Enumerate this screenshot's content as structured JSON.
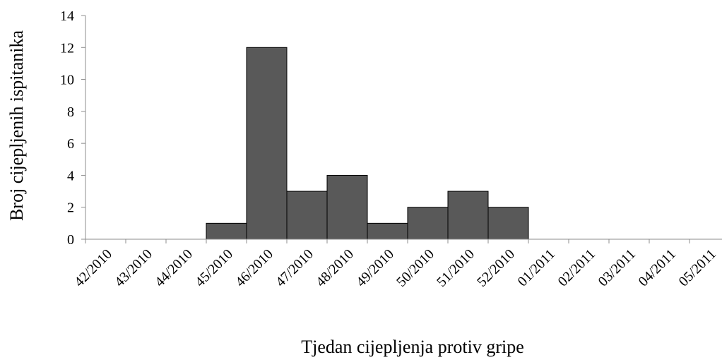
{
  "chart_data": {
    "type": "bar",
    "title": "",
    "xlabel": "Tjedan cijepljenja protiv gripe",
    "ylabel": "Broj cijepljenih ispitanika",
    "categories": [
      "42/2010",
      "43/2010",
      "44/2010",
      "45/2010",
      "46/2010",
      "47/2010",
      "48/2010",
      "49/2010",
      "50/2010",
      "51/2010",
      "52/2010",
      "01/2011",
      "02/2011",
      "03/2011",
      "04/2011",
      "05/2011"
    ],
    "values": [
      0,
      0,
      0,
      1,
      12,
      3,
      4,
      1,
      2,
      3,
      2,
      0,
      0,
      0,
      0,
      0
    ],
    "ylim": [
      0,
      14
    ],
    "yticks": [
      "0",
      "2",
      "4",
      "6",
      "8",
      "10",
      "12",
      "14"
    ],
    "grid": false,
    "legend": "none",
    "bar_color": "#595959",
    "bar_edge_color": "#000000"
  }
}
